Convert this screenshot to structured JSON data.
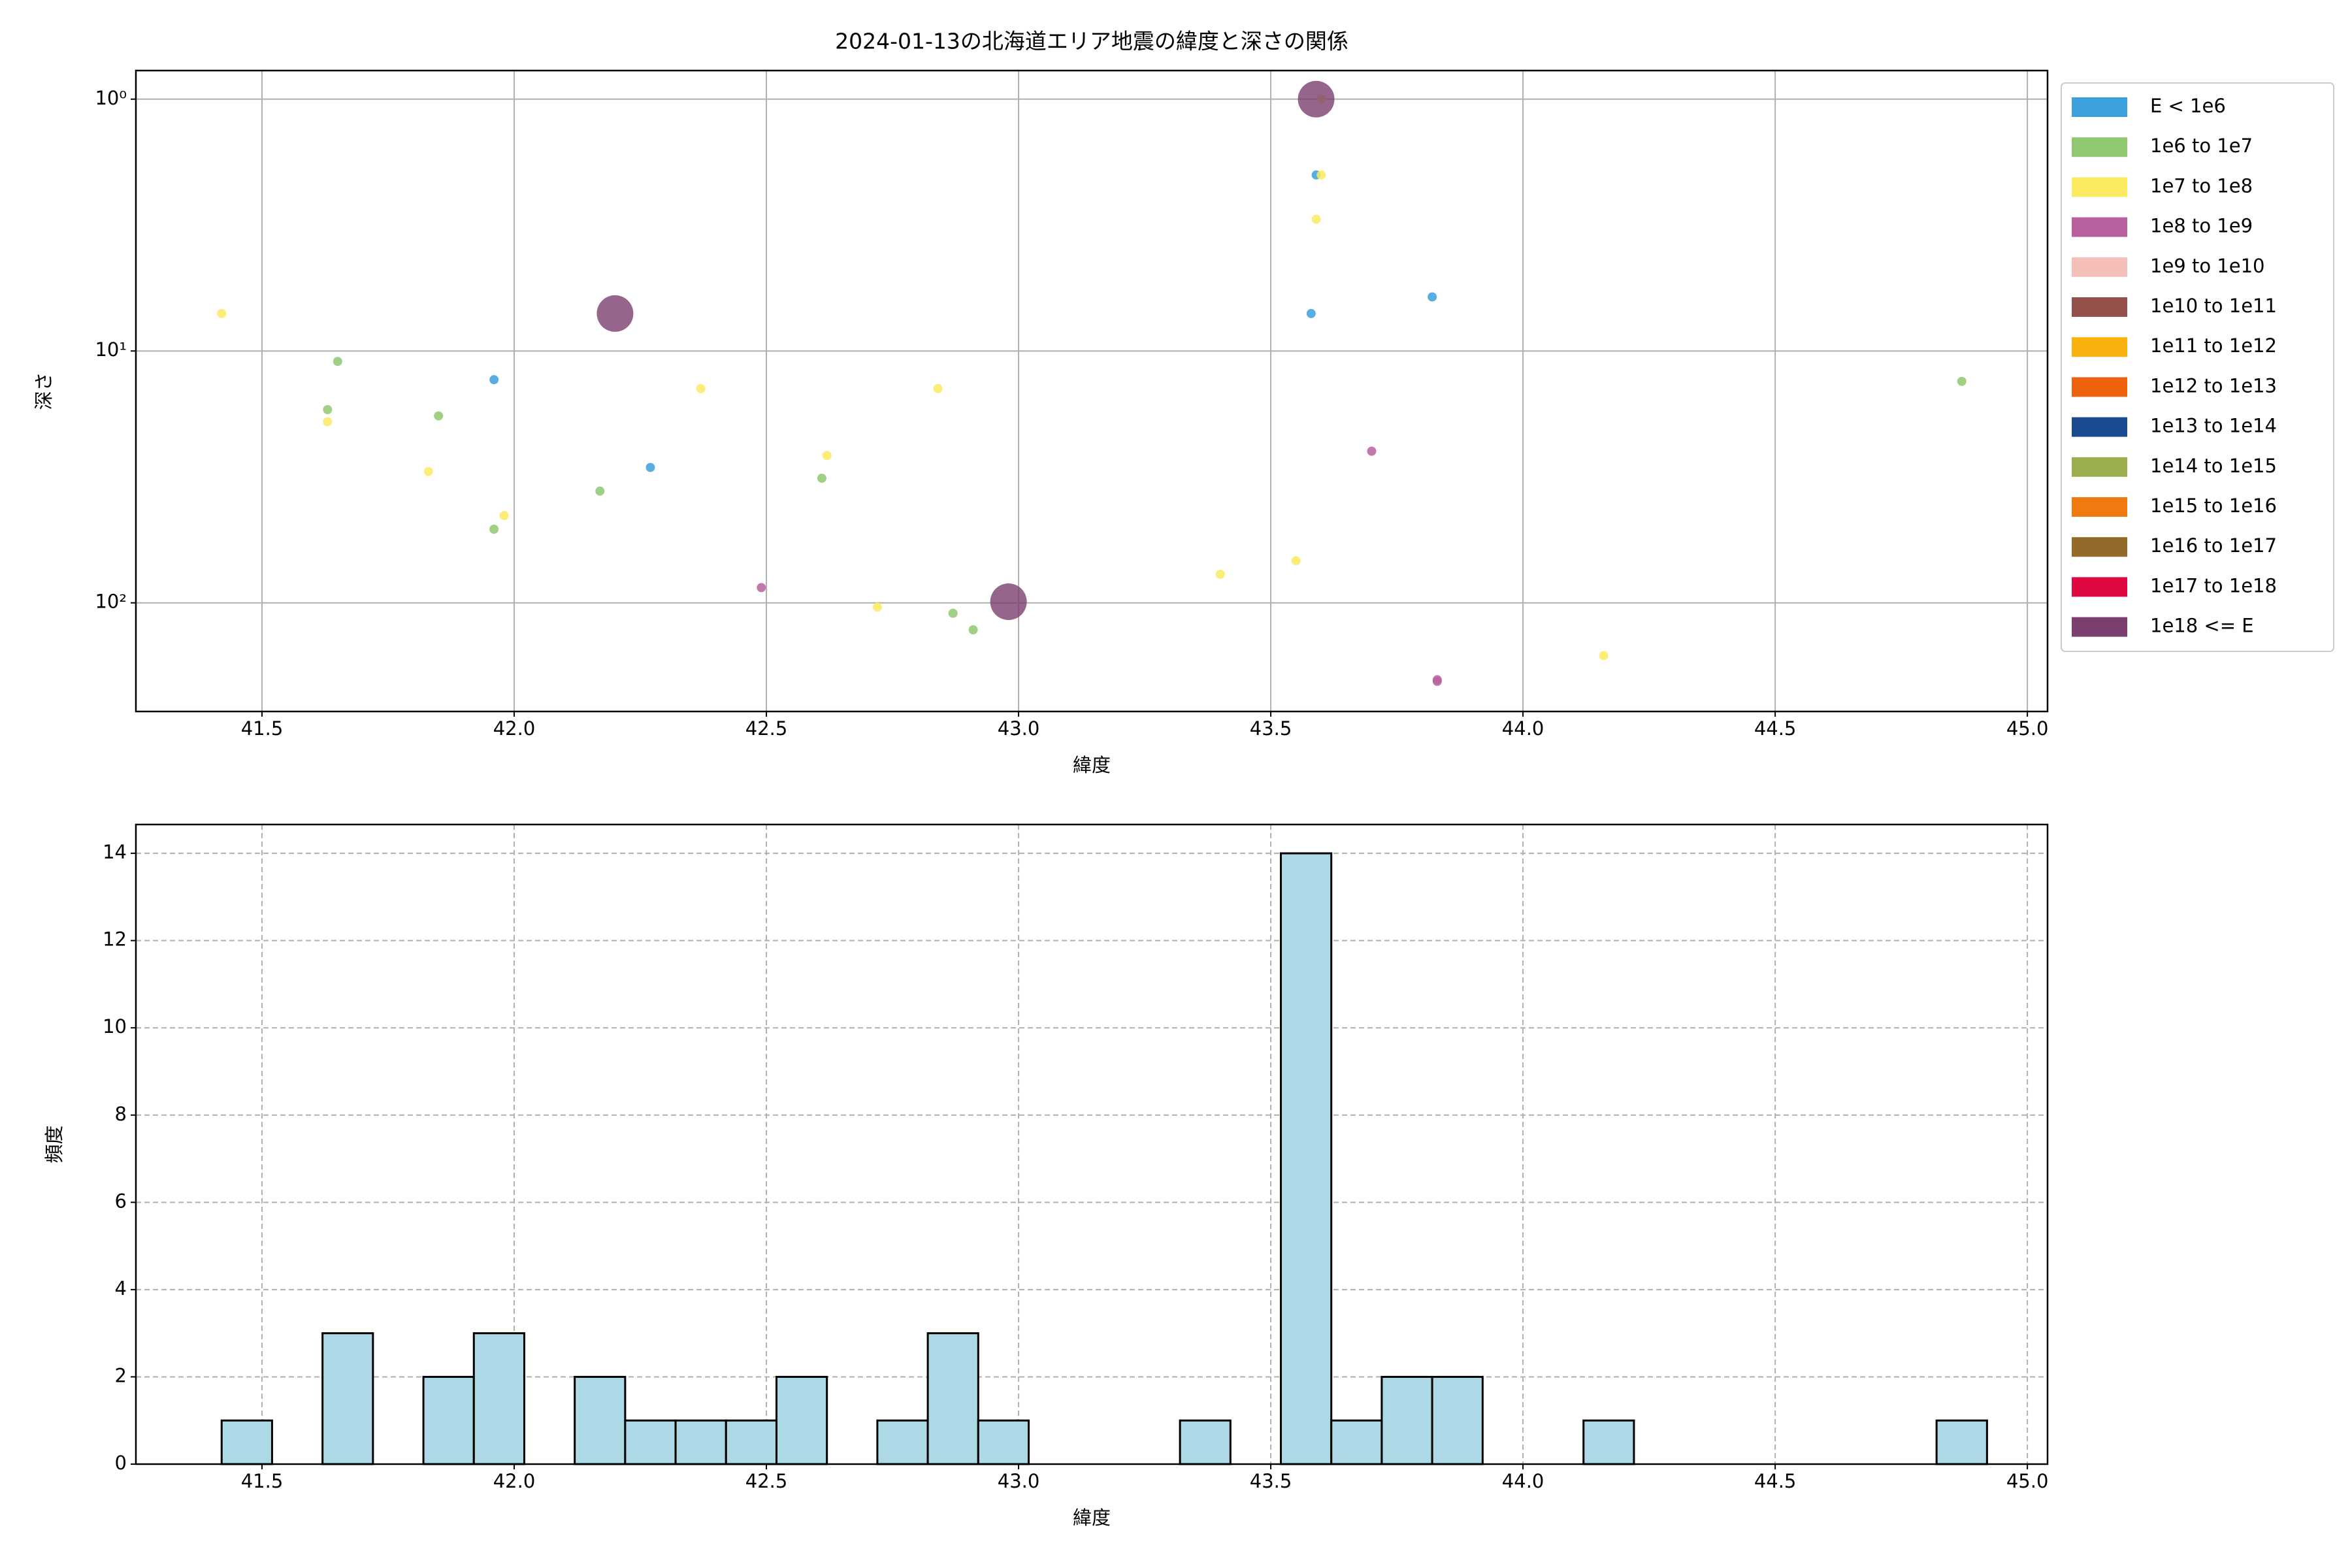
{
  "chart_data": [
    {
      "type": "scatter",
      "title": "2024-01-13の北海道エリア地震の緯度と深さの関係",
      "xlabel": "緯度",
      "ylabel": "深さ",
      "xlim": [
        41.25,
        45.04
      ],
      "ylim": [
        0.77,
        270
      ],
      "log_y": true,
      "invert_y": true,
      "xticks": [
        41.5,
        {
          "value": 42,
          "label": "42.0"
        },
        42.5,
        {
          "value": 43,
          "label": "43.0"
        },
        43.5,
        {
          "value": 44,
          "label": "44.0"
        },
        44.5,
        {
          "value": 45,
          "label": "45.0"
        }
      ],
      "yticks": [
        {
          "value": 1,
          "label": "10⁰"
        },
        {
          "value": 10,
          "label": "10¹"
        },
        {
          "value": 100,
          "label": "10²"
        }
      ],
      "grid": "solid",
      "legend_loc": "outside-upper-right",
      "series": [
        {
          "name": "E < 1e6",
          "color": "#3ca0dc",
          "x": [
            41.96,
            42.27,
            43.59,
            43.58,
            43.82
          ],
          "values": [
            13.0,
            29,
            2.0,
            7.1,
            6.1
          ]
        },
        {
          "name": "1e6 to 1e7",
          "color": "#8fc870",
          "x": [
            41.65,
            41.63,
            41.85,
            41.96,
            42.17,
            42.61,
            42.87,
            42.91,
            44.87
          ],
          "values": [
            11.0,
            17.1,
            18.1,
            51,
            36,
            32,
            110,
            128,
            13.2
          ]
        },
        {
          "name": "1e7 to 1e8",
          "color": "#fbe960",
          "x": [
            41.42,
            41.63,
            41.83,
            41.98,
            42.37,
            42.62,
            42.72,
            42.84,
            43.4,
            43.55,
            43.6,
            43.6,
            43.59,
            44.16
          ],
          "values": [
            7.1,
            19.1,
            30.1,
            45,
            14.1,
            26,
            104,
            14.1,
            77,
            68,
            1.0,
            2.0,
            3.0,
            162
          ]
        },
        {
          "name": "1e8 to 1e9",
          "color": "#b8609e",
          "x": [
            42.49,
            43.7,
            43.83,
            43.83
          ],
          "values": [
            87,
            25,
            202,
            205
          ]
        },
        {
          "name": "1e9 to 1e10",
          "color": "#f4bfb8",
          "x": [],
          "values": []
        },
        {
          "name": "1e10 to 1e11",
          "color": "#94504a",
          "x": [],
          "values": []
        },
        {
          "name": "1e11 to 1e12",
          "color": "#f8b10d",
          "x": [],
          "values": []
        },
        {
          "name": "1e12 to 1e13",
          "color": "#ee620e",
          "x": [],
          "values": []
        },
        {
          "name": "1e13 to 1e14",
          "color": "#1c4a91",
          "x": [],
          "values": []
        },
        {
          "name": "1e14 to 1e15",
          "color": "#9aae4e",
          "x": [],
          "values": []
        },
        {
          "name": "1e15 to 1e16",
          "color": "#ef7a10",
          "x": [],
          "values": []
        },
        {
          "name": "1e16 to 1e17",
          "color": "#936a2a",
          "x": [],
          "values": []
        },
        {
          "name": "1e17 to 1e18",
          "color": "#df0840",
          "x": [],
          "values": []
        },
        {
          "name": "1e18 <= E",
          "color": "#7a3f6e",
          "x": [
            42.2,
            42.98,
            43.59
          ],
          "values": [
            7.1,
            99,
            1.0
          ]
        }
      ]
    },
    {
      "type": "histogram",
      "xlabel": "緯度",
      "ylabel": "頻度",
      "xlim": [
        41.25,
        45.04
      ],
      "ylim": [
        0,
        14.66
      ],
      "xticks": [
        41.5,
        {
          "value": 42,
          "label": "42.0"
        },
        42.5,
        {
          "value": 43,
          "label": "43.0"
        },
        43.5,
        {
          "value": 44,
          "label": "44.0"
        },
        44.5,
        {
          "value": 45,
          "label": "45.0"
        }
      ],
      "yticks": [
        0,
        2,
        4,
        6,
        8,
        10,
        12,
        14
      ],
      "grid": "dashed",
      "color": "#add8e6",
      "edgecolor": "#000000",
      "bins": [
        41.42,
        41.52,
        41.62,
        41.72,
        41.82,
        41.92,
        42.02,
        42.12,
        42.22,
        42.32,
        42.42,
        42.52,
        42.62,
        42.72,
        42.82,
        42.92,
        43.02,
        43.12,
        43.22,
        43.32,
        43.42,
        43.52,
        43.62,
        43.72,
        43.82,
        43.92,
        44.02,
        44.12,
        44.22,
        44.32,
        44.42,
        44.52,
        44.62,
        44.72,
        44.82,
        44.92
      ],
      "values": [
        1,
        0,
        3,
        0,
        2,
        3,
        0,
        2,
        1,
        1,
        1,
        2,
        0,
        1,
        3,
        1,
        0,
        0,
        0,
        1,
        0,
        14,
        1,
        2,
        2,
        0,
        0,
        1,
        0,
        0,
        0,
        0,
        0,
        0,
        1
      ]
    }
  ]
}
